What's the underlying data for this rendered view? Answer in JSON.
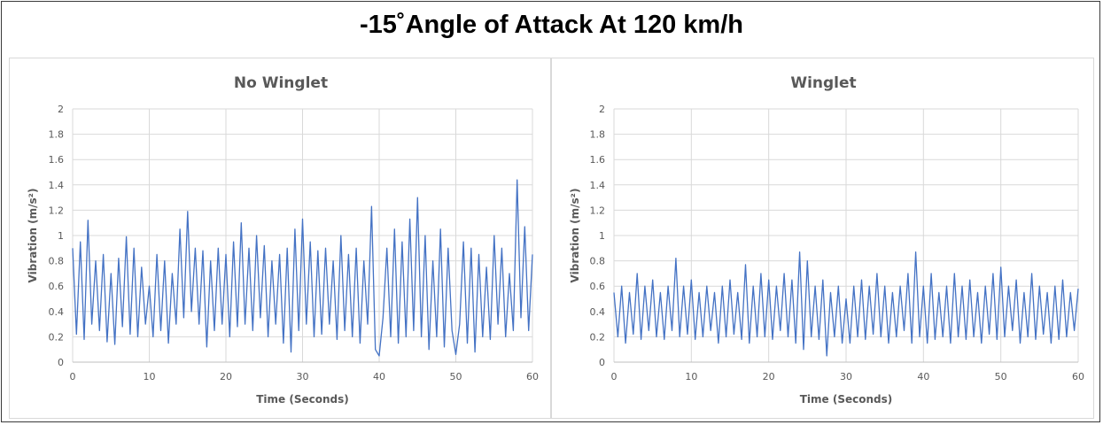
{
  "title": "-15˚Angle of Attack At 120 km/h",
  "chart_data": [
    {
      "type": "line",
      "title": "No Winglet",
      "xlabel": "Time (Seconds)",
      "ylabel": "Vibration (m/s²)",
      "xlim": [
        0,
        60
      ],
      "ylim": [
        0,
        2
      ],
      "xticks": [
        "0",
        "10",
        "20",
        "30",
        "40",
        "50",
        "60"
      ],
      "yticks": [
        "0",
        "0.2",
        "0.4",
        "0.6",
        "0.8",
        "1",
        "1.2",
        "1.4",
        "1.6",
        "1.8",
        "2"
      ],
      "grid": true,
      "color": "#4472c4",
      "series": [
        {
          "x": [
            0,
            0.5,
            1,
            1.5,
            2,
            2.5,
            3,
            3.5,
            4,
            4.5,
            5,
            5.5,
            6,
            6.5,
            7,
            7.5,
            8,
            8.5,
            9,
            9.5,
            10,
            10.5,
            11,
            11.5,
            12,
            12.5,
            13,
            13.5,
            14,
            14.5,
            15,
            15.5,
            16,
            16.5,
            17,
            17.5,
            18,
            18.5,
            19,
            19.5,
            20,
            20.5,
            21,
            21.5,
            22,
            22.5,
            23,
            23.5,
            24,
            24.5,
            25,
            25.5,
            26,
            26.5,
            27,
            27.5,
            28,
            28.5,
            29,
            29.5,
            30,
            30.5,
            31,
            31.5,
            32,
            32.5,
            33,
            33.5,
            34,
            34.5,
            35,
            35.5,
            36,
            36.5,
            37,
            37.5,
            38,
            38.5,
            39,
            39.5,
            40,
            40.5,
            41,
            41.5,
            42,
            42.5,
            43,
            43.5,
            44,
            44.5,
            45,
            45.5,
            46,
            46.5,
            47,
            47.5,
            48,
            48.5,
            49,
            49.5,
            50,
            50.5,
            51,
            51.5,
            52,
            52.5,
            53,
            53.5,
            54,
            54.5,
            55,
            55.5,
            56,
            56.5,
            57,
            57.5,
            58,
            58.5,
            59,
            59.5,
            60
          ],
          "values": [
            0.9,
            0.22,
            0.95,
            0.18,
            1.12,
            0.3,
            0.8,
            0.25,
            0.85,
            0.16,
            0.7,
            0.14,
            0.82,
            0.28,
            0.99,
            0.22,
            0.9,
            0.2,
            0.75,
            0.3,
            0.6,
            0.2,
            0.85,
            0.25,
            0.8,
            0.15,
            0.7,
            0.3,
            1.05,
            0.35,
            1.19,
            0.4,
            0.9,
            0.3,
            0.88,
            0.12,
            0.8,
            0.25,
            0.9,
            0.3,
            0.85,
            0.2,
            0.95,
            0.28,
            1.1,
            0.3,
            0.9,
            0.25,
            1.0,
            0.35,
            0.92,
            0.2,
            0.8,
            0.3,
            0.85,
            0.15,
            0.9,
            0.08,
            1.05,
            0.25,
            1.13,
            0.3,
            0.95,
            0.2,
            0.88,
            0.22,
            0.9,
            0.3,
            0.8,
            0.18,
            1.0,
            0.25,
            0.85,
            0.2,
            0.9,
            0.15,
            0.8,
            0.3,
            1.23,
            0.1,
            0.05,
            0.35,
            0.9,
            0.2,
            1.05,
            0.15,
            0.95,
            0.2,
            1.13,
            0.25,
            1.3,
            0.2,
            1.0,
            0.1,
            0.8,
            0.2,
            1.05,
            0.12,
            0.9,
            0.25,
            0.06,
            0.3,
            0.95,
            0.15,
            0.9,
            0.08,
            0.85,
            0.2,
            0.75,
            0.18,
            1.0,
            0.3,
            0.9,
            0.2,
            0.7,
            0.25,
            1.44,
            0.35,
            1.07,
            0.25,
            0.85
          ]
        }
      ]
    },
    {
      "type": "line",
      "title": "Winglet",
      "xlabel": "Time (Seconds)",
      "ylabel": "Vibration (m/s²)",
      "xlim": [
        0,
        60
      ],
      "ylim": [
        0,
        2
      ],
      "xticks": [
        "0",
        "10",
        "20",
        "30",
        "40",
        "50",
        "60"
      ],
      "yticks": [
        "0",
        "0.2",
        "0.4",
        "0.6",
        "0.8",
        "1",
        "1.2",
        "1.4",
        "1.6",
        "1.8",
        "2"
      ],
      "grid": true,
      "color": "#4472c4",
      "series": [
        {
          "x": [
            0,
            0.5,
            1,
            1.5,
            2,
            2.5,
            3,
            3.5,
            4,
            4.5,
            5,
            5.5,
            6,
            6.5,
            7,
            7.5,
            8,
            8.5,
            9,
            9.5,
            10,
            10.5,
            11,
            11.5,
            12,
            12.5,
            13,
            13.5,
            14,
            14.5,
            15,
            15.5,
            16,
            16.5,
            17,
            17.5,
            18,
            18.5,
            19,
            19.5,
            20,
            20.5,
            21,
            21.5,
            22,
            22.5,
            23,
            23.5,
            24,
            24.5,
            25,
            25.5,
            26,
            26.5,
            27,
            27.5,
            28,
            28.5,
            29,
            29.5,
            30,
            30.5,
            31,
            31.5,
            32,
            32.5,
            33,
            33.5,
            34,
            34.5,
            35,
            35.5,
            36,
            36.5,
            37,
            37.5,
            38,
            38.5,
            39,
            39.5,
            40,
            40.5,
            41,
            41.5,
            42,
            42.5,
            43,
            43.5,
            44,
            44.5,
            45,
            45.5,
            46,
            46.5,
            47,
            47.5,
            48,
            48.5,
            49,
            49.5,
            50,
            50.5,
            51,
            51.5,
            52,
            52.5,
            53,
            53.5,
            54,
            54.5,
            55,
            55.5,
            56,
            56.5,
            57,
            57.5,
            58,
            58.5,
            59,
            59.5,
            60
          ],
          "values": [
            0.55,
            0.2,
            0.6,
            0.15,
            0.55,
            0.22,
            0.7,
            0.18,
            0.6,
            0.25,
            0.65,
            0.2,
            0.55,
            0.18,
            0.6,
            0.25,
            0.82,
            0.2,
            0.6,
            0.22,
            0.65,
            0.18,
            0.55,
            0.2,
            0.6,
            0.25,
            0.55,
            0.15,
            0.6,
            0.2,
            0.65,
            0.22,
            0.55,
            0.18,
            0.77,
            0.15,
            0.6,
            0.2,
            0.7,
            0.2,
            0.65,
            0.18,
            0.6,
            0.25,
            0.7,
            0.2,
            0.65,
            0.15,
            0.87,
            0.1,
            0.8,
            0.2,
            0.6,
            0.18,
            0.65,
            0.05,
            0.55,
            0.2,
            0.6,
            0.15,
            0.5,
            0.15,
            0.6,
            0.2,
            0.65,
            0.18,
            0.6,
            0.22,
            0.7,
            0.2,
            0.6,
            0.15,
            0.55,
            0.2,
            0.6,
            0.25,
            0.7,
            0.15,
            0.87,
            0.2,
            0.6,
            0.15,
            0.7,
            0.18,
            0.55,
            0.2,
            0.6,
            0.15,
            0.7,
            0.2,
            0.6,
            0.18,
            0.65,
            0.2,
            0.55,
            0.15,
            0.6,
            0.22,
            0.7,
            0.18,
            0.75,
            0.2,
            0.6,
            0.25,
            0.65,
            0.15,
            0.55,
            0.2,
            0.7,
            0.18,
            0.6,
            0.22,
            0.55,
            0.15,
            0.6,
            0.18,
            0.65,
            0.2,
            0.55,
            0.25,
            0.58
          ]
        }
      ]
    }
  ]
}
